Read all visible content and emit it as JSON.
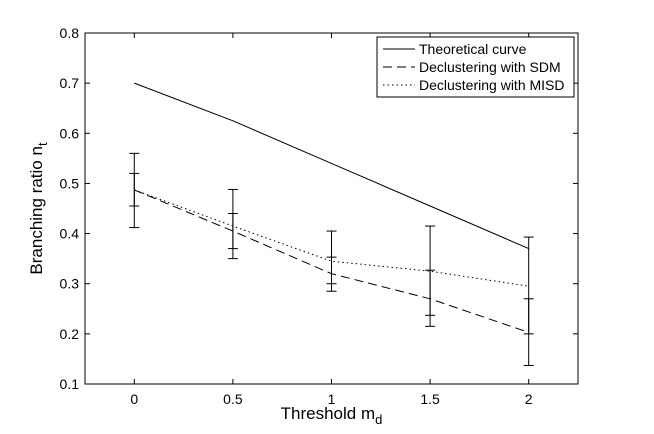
{
  "chart_data": {
    "type": "line",
    "title": "",
    "xlabel_main": "Threshold m",
    "xlabel_sub": "d",
    "ylabel_main": "Branching ratio n",
    "ylabel_sub": "t",
    "xlim": [
      -0.25,
      2.25
    ],
    "ylim": [
      0.1,
      0.8
    ],
    "x_ticks": [
      0,
      0.5,
      1,
      1.5,
      2
    ],
    "x_tick_labels": [
      "0",
      "0.5",
      "1",
      "1.5",
      "2"
    ],
    "y_ticks": [
      0.1,
      0.2,
      0.3,
      0.4,
      0.5,
      0.6,
      0.7,
      0.8
    ],
    "y_tick_labels": [
      "0.1",
      "0.2",
      "0.3",
      "0.4",
      "0.5",
      "0.6",
      "0.7",
      "0.8"
    ],
    "grid": false,
    "legend_position": "top-right",
    "x": [
      0,
      0.5,
      1,
      1.5,
      2
    ],
    "series": [
      {
        "name": "Theoretical curve",
        "style": "solid",
        "values": [
          0.7,
          0.625,
          0.54,
          0.455,
          0.37
        ]
      },
      {
        "name": "Declustering with SDM",
        "style": "dashed",
        "values": [
          0.487,
          0.405,
          0.32,
          0.27,
          0.203
        ],
        "error_low": [
          0.455,
          0.37,
          0.285,
          0.237,
          0.137
        ],
        "error_high": [
          0.52,
          0.44,
          0.353,
          0.327,
          0.27
        ]
      },
      {
        "name": "Declustering with MISD",
        "style": "dotted",
        "values": [
          0.487,
          0.415,
          0.345,
          0.325,
          0.295
        ],
        "error_low": [
          0.412,
          0.35,
          0.3,
          0.215,
          0.2
        ],
        "error_high": [
          0.56,
          0.488,
          0.405,
          0.415,
          0.393
        ]
      }
    ]
  }
}
